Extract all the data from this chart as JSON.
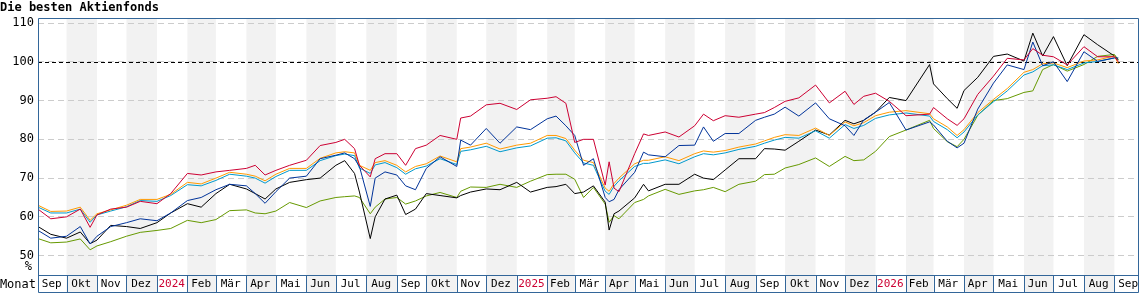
{
  "chart_data": {
    "type": "line",
    "title": "Die besten Aktienfonds",
    "xlabel": "Monat",
    "ylabel": "%",
    "x": [
      "2023-09-02",
      "2023-09-15",
      "2023-10-01",
      "2023-10-15",
      "2023-10-25",
      "2023-11-01",
      "2023-11-15",
      "2023-12-01",
      "2023-12-15",
      "2024-01-01",
      "2024-01-15",
      "2024-02-01",
      "2024-02-15",
      "2024-03-01",
      "2024-03-15",
      "2024-04-01",
      "2024-04-10",
      "2024-04-20",
      "2024-05-01",
      "2024-05-15",
      "2024-06-01",
      "2024-06-15",
      "2024-07-01",
      "2024-07-10",
      "2024-07-20",
      "2024-07-25",
      "2024-08-05",
      "2024-08-10",
      "2024-08-20",
      "2024-09-01",
      "2024-09-10",
      "2024-09-20",
      "2024-10-01",
      "2024-10-15",
      "2024-11-01",
      "2024-11-05",
      "2024-11-15",
      "2024-12-01",
      "2024-12-15",
      "2025-01-01",
      "2025-01-15",
      "2025-02-01",
      "2025-02-10",
      "2025-02-20",
      "2025-03-01",
      "2025-03-10",
      "2025-03-20",
      "2025-04-01",
      "2025-04-05",
      "2025-04-10",
      "2025-04-15",
      "2025-05-01",
      "2025-05-10",
      "2025-05-15",
      "2025-06-01",
      "2025-06-15",
      "2025-07-01",
      "2025-07-10",
      "2025-07-20",
      "2025-08-01",
      "2025-08-15",
      "2025-09-01",
      "2025-09-10",
      "2025-09-20",
      "2025-10-01",
      "2025-10-15",
      "2025-11-01",
      "2025-11-15",
      "2025-12-01",
      "2025-12-10",
      "2025-12-20",
      "2026-01-01",
      "2026-01-15",
      "2026-02-01",
      "2026-02-25",
      "2026-03-01",
      "2026-03-15",
      "2026-03-25",
      "2026-04-01",
      "2026-04-15",
      "2026-05-01",
      "2026-05-15",
      "2026-06-01",
      "2026-06-10",
      "2026-06-20",
      "2026-07-01",
      "2026-07-15",
      "2026-08-01",
      "2026-08-15",
      "2026-09-01",
      "2026-09-05"
    ],
    "series": [
      {
        "color": "#cc0033",
        "values": [
          62,
          59.5,
          60,
          62,
          57.3,
          60.5,
          62,
          62.5,
          64,
          63.4,
          66,
          71.2,
          70.8,
          71.6,
          72,
          72.5,
          73.3,
          70.8,
          72,
          73.3,
          74.6,
          78.4,
          79.2,
          80,
          77.6,
          73.3,
          70.3,
          75,
          76.3,
          76.3,
          73.3,
          77.6,
          78.5,
          81,
          80,
          85.5,
          86,
          88.9,
          89.3,
          87.7,
          90.2,
          90.6,
          91,
          89.3,
          79.2,
          80,
          80,
          68.2,
          74.2,
          67.4,
          66.5,
          76.3,
          81.4,
          81,
          81.9,
          80.6,
          83.5,
          86.5,
          84.8,
          86.1,
          85.7,
          86.5,
          86.9,
          88.2,
          89.8,
          90.7,
          94,
          89.4,
          92.4,
          89,
          91.1,
          91.9,
          89.8,
          86.1,
          86.5,
          88.2,
          85.3,
          83.6,
          85.3,
          91.6,
          96.3,
          100.9,
          100.5,
          103.4,
          101.7,
          101.3,
          99.2,
          103.9,
          101.3,
          101.3,
          100
        ]
      },
      {
        "color": "#003399",
        "values": [
          56.5,
          54.5,
          55,
          57.5,
          53,
          55,
          57.5,
          58.5,
          59.5,
          59,
          61,
          64.2,
          65,
          67,
          68.4,
          68,
          66,
          63.5,
          66.5,
          70,
          70.5,
          75,
          75.9,
          76.5,
          75,
          73,
          62.7,
          70,
          71.6,
          70.8,
          68,
          67,
          72.5,
          75.5,
          73,
          79.8,
          78.5,
          82.8,
          79,
          83.2,
          82.5,
          85.3,
          86,
          83.5,
          81,
          73.3,
          75,
          65,
          63.9,
          64.5,
          67,
          71.5,
          76.7,
          76,
          75.5,
          78.4,
          78.5,
          83.2,
          79.5,
          81.5,
          81.5,
          84.9,
          85.7,
          86.5,
          88.3,
          86,
          89.4,
          85.3,
          83.5,
          81,
          85,
          87,
          89.5,
          82.4,
          84.5,
          83.7,
          79.5,
          77.8,
          79,
          87.8,
          94.5,
          99.2,
          98,
          105.1,
          99,
          100,
          94.9,
          102.6,
          100.1,
          101,
          101
        ]
      },
      {
        "color": "#ff9900",
        "values": [
          63,
          61.4,
          61.5,
          62.5,
          59.1,
          60.8,
          61.8,
          63,
          64.5,
          64.5,
          65.8,
          68.9,
          68.5,
          70,
          71.5,
          71,
          70.5,
          69.3,
          71,
          72.5,
          72.5,
          75.1,
          76.5,
          76.8,
          76.5,
          73.3,
          72,
          74,
          74.5,
          73.3,
          71.6,
          73,
          73.7,
          75.7,
          74.2,
          77.6,
          78,
          79,
          77.5,
          78.5,
          79,
          81,
          81,
          80.2,
          77.2,
          74.6,
          74,
          67.4,
          66.6,
          68.6,
          70,
          73.7,
          74.6,
          74.6,
          75.5,
          74.5,
          76.3,
          77,
          76.7,
          77.1,
          78,
          78.8,
          79.6,
          80.5,
          81.2,
          81,
          82.9,
          81,
          84.5,
          83.5,
          84.3,
          86.1,
          87,
          87.4,
          86.6,
          85.3,
          83.2,
          81,
          82.5,
          86.9,
          90.3,
          93.1,
          97.3,
          98,
          99.5,
          99.7,
          98.5,
          100.2,
          100.5,
          101.5,
          99.5
        ]
      },
      {
        "color": "#0099cc",
        "values": [
          62.5,
          61,
          61,
          62,
          58.6,
          60.5,
          61.5,
          62.6,
          64.2,
          64,
          65.5,
          68.3,
          68,
          69.4,
          71,
          70.5,
          70,
          68.7,
          70.4,
          72,
          72,
          74.5,
          75.8,
          76.2,
          75.8,
          72.6,
          71.2,
          73.4,
          74,
          72.7,
          71,
          72.4,
          73.1,
          75,
          73.5,
          76.9,
          77.3,
          78.2,
          76.8,
          77.8,
          78.3,
          80.3,
          80.4,
          79.6,
          76.5,
          73.9,
          73.3,
          66.6,
          65.8,
          67.9,
          69.3,
          73,
          73.8,
          73.8,
          74.7,
          73.7,
          75.5,
          76.3,
          76,
          76.5,
          77.4,
          78.2,
          79,
          79.8,
          80.5,
          80.3,
          82.2,
          80.3,
          83.8,
          82.8,
          83.6,
          85.4,
          86.3,
          86.8,
          86,
          84.6,
          82.5,
          80.4,
          81.9,
          86.3,
          89.7,
          92.5,
          96.6,
          97.4,
          99,
          99.2,
          98,
          99.7,
          100.1,
          101,
          null
        ]
      },
      {
        "color": "#000000",
        "values": [
          57.5,
          55.5,
          54.5,
          56.1,
          53.1,
          54,
          57.8,
          57.5,
          57,
          58.5,
          61,
          63.4,
          62.5,
          66,
          68.4,
          67.2,
          66,
          64.6,
          67.2,
          68.9,
          69.6,
          70,
          73.3,
          74.5,
          71.2,
          66.4,
          54.4,
          60,
          64.6,
          65.6,
          60.6,
          62,
          66,
          65.5,
          64.9,
          65.5,
          66.4,
          67.2,
          67,
          68.9,
          66.4,
          67.6,
          67.8,
          68.4,
          66,
          66.4,
          68,
          63.8,
          56.6,
          60.8,
          61.5,
          64.9,
          68.4,
          66.7,
          68.4,
          68.4,
          71,
          70,
          69.6,
          72.1,
          75,
          75,
          77.6,
          77.5,
          77.2,
          79.5,
          82.4,
          81.1,
          84.9,
          84,
          84.9,
          87,
          90.8,
          90,
          99.3,
          94.3,
          90.5,
          88,
          92.6,
          96,
          101.4,
          102,
          100.2,
          107.4,
          101.5,
          106.5,
          99,
          107,
          104.4,
          101.5,
          100.5
        ]
      },
      {
        "color": "#669900",
        "values": [
          54.4,
          53.3,
          53.5,
          54.3,
          51.5,
          52.5,
          53.6,
          55,
          56,
          56.5,
          57,
          59.1,
          58.5,
          59.3,
          61.6,
          61.8,
          61,
          60.8,
          61.5,
          63.7,
          62.4,
          64.1,
          65,
          65.2,
          65.4,
          65,
          60.8,
          62.5,
          64.6,
          65,
          63.3,
          64.1,
          65.4,
          66.3,
          65,
          66.6,
          67.7,
          67.6,
          68.4,
          67.6,
          69.2,
          70.9,
          71,
          71,
          69.7,
          65,
          67.6,
          63.3,
          58.6,
          60.3,
          59.5,
          63.7,
          64.5,
          65.4,
          67.1,
          65.8,
          66.7,
          67,
          67.6,
          66.5,
          68.4,
          69.2,
          70.9,
          71,
          72.6,
          73.5,
          75.2,
          73,
          75.6,
          74.5,
          74.7,
          76.9,
          80.7,
          82.4,
          84.9,
          82.8,
          79.4,
          78.1,
          80,
          86.2,
          90,
          90.5,
          92.1,
          92.5,
          98,
          99.3,
          97.6,
          99.3,
          101.4,
          101.9,
          100.5
        ]
      }
    ],
    "xlim": [
      "2023-09-02",
      "2026-09-25"
    ],
    "xticks": [
      {
        "value": "2023-09-16",
        "label": "Sep"
      },
      {
        "value": "2023-10-16",
        "label": "Okt"
      },
      {
        "value": "2023-11-15",
        "label": "Nov"
      },
      {
        "value": "2023-12-16",
        "label": "Dez"
      },
      {
        "value": "2024-01-16",
        "label": "2024"
      },
      {
        "value": "2024-02-15",
        "label": "Feb"
      },
      {
        "value": "2024-03-16",
        "label": "Mär"
      },
      {
        "value": "2024-04-15",
        "label": "Apr"
      },
      {
        "value": "2024-05-16",
        "label": "Mai"
      },
      {
        "value": "2024-06-15",
        "label": "Jun"
      },
      {
        "value": "2024-07-16",
        "label": "Jul"
      },
      {
        "value": "2024-08-16",
        "label": "Aug"
      },
      {
        "value": "2024-09-15",
        "label": "Sep"
      },
      {
        "value": "2024-10-16",
        "label": "Okt"
      },
      {
        "value": "2024-11-15",
        "label": "Nov"
      },
      {
        "value": "2024-12-16",
        "label": "Dez"
      },
      {
        "value": "2025-01-16",
        "label": "2025"
      },
      {
        "value": "2025-02-14",
        "label": "Feb"
      },
      {
        "value": "2025-03-16",
        "label": "Mär"
      },
      {
        "value": "2025-04-15",
        "label": "Apr"
      },
      {
        "value": "2025-05-16",
        "label": "Mai"
      },
      {
        "value": "2025-06-15",
        "label": "Jun"
      },
      {
        "value": "2025-07-16",
        "label": "Jul"
      },
      {
        "value": "2025-08-16",
        "label": "Aug"
      },
      {
        "value": "2025-09-15",
        "label": "Sep"
      },
      {
        "value": "2025-10-16",
        "label": "Okt"
      },
      {
        "value": "2025-11-15",
        "label": "Nov"
      },
      {
        "value": "2025-12-16",
        "label": "Dez"
      },
      {
        "value": "2026-01-16",
        "label": "2026"
      },
      {
        "value": "2026-02-14",
        "label": "Feb"
      },
      {
        "value": "2026-03-16",
        "label": "Mär"
      },
      {
        "value": "2026-04-15",
        "label": "Apr"
      },
      {
        "value": "2026-05-16",
        "label": "Mai"
      },
      {
        "value": "2026-06-15",
        "label": "Jun"
      },
      {
        "value": "2026-07-16",
        "label": "Jul"
      },
      {
        "value": "2026-08-16",
        "label": "Aug"
      },
      {
        "value": "2026-09-15",
        "label": "Sep"
      }
    ],
    "ylim": [
      45,
      111.2
    ],
    "yticks": [
      50,
      60,
      70,
      80,
      90,
      100,
      110
    ],
    "ref_lines": [
      {
        "axis": "y",
        "value": 100,
        "color": "#000000",
        "line_style": "dashed"
      }
    ],
    "bands": [
      {
        "axis": "x",
        "from": "2023-10-01",
        "to": "2023-11-01",
        "color": "#f2f2f2"
      },
      {
        "axis": "x",
        "from": "2023-12-01",
        "to": "2024-01-01",
        "color": "#f2f2f2"
      },
      {
        "axis": "x",
        "from": "2024-02-01",
        "to": "2024-03-01",
        "color": "#f2f2f2"
      },
      {
        "axis": "x",
        "from": "2024-04-01",
        "to": "2024-05-01",
        "color": "#f2f2f2"
      },
      {
        "axis": "x",
        "from": "2024-06-01",
        "to": "2024-07-01",
        "color": "#f2f2f2"
      },
      {
        "axis": "x",
        "from": "2024-08-01",
        "to": "2024-09-01",
        "color": "#f2f2f2"
      },
      {
        "axis": "x",
        "from": "2024-10-01",
        "to": "2024-11-01",
        "color": "#f2f2f2"
      },
      {
        "axis": "x",
        "from": "2024-12-01",
        "to": "2025-01-01",
        "color": "#f2f2f2"
      },
      {
        "axis": "x",
        "from": "2025-02-01",
        "to": "2025-03-01",
        "color": "#f2f2f2"
      },
      {
        "axis": "x",
        "from": "2025-04-01",
        "to": "2025-05-01",
        "color": "#f2f2f2"
      },
      {
        "axis": "x",
        "from": "2025-06-01",
        "to": "2025-07-01",
        "color": "#f2f2f2"
      },
      {
        "axis": "x",
        "from": "2025-08-01",
        "to": "2025-09-01",
        "color": "#f2f2f2"
      },
      {
        "axis": "x",
        "from": "2025-10-01",
        "to": "2025-11-01",
        "color": "#f2f2f2"
      },
      {
        "axis": "x",
        "from": "2025-12-01",
        "to": "2026-01-01",
        "color": "#f2f2f2"
      },
      {
        "axis": "x",
        "from": "2026-02-01",
        "to": "2026-03-01",
        "color": "#f2f2f2"
      },
      {
        "axis": "x",
        "from": "2026-04-01",
        "to": "2026-05-01",
        "color": "#f2f2f2"
      },
      {
        "axis": "x",
        "from": "2026-06-01",
        "to": "2026-07-01",
        "color": "#f2f2f2"
      },
      {
        "axis": "x",
        "from": "2026-08-01",
        "to": "2026-09-01",
        "color": "#f2f2f2"
      }
    ],
    "grid": "y",
    "legend": false
  }
}
